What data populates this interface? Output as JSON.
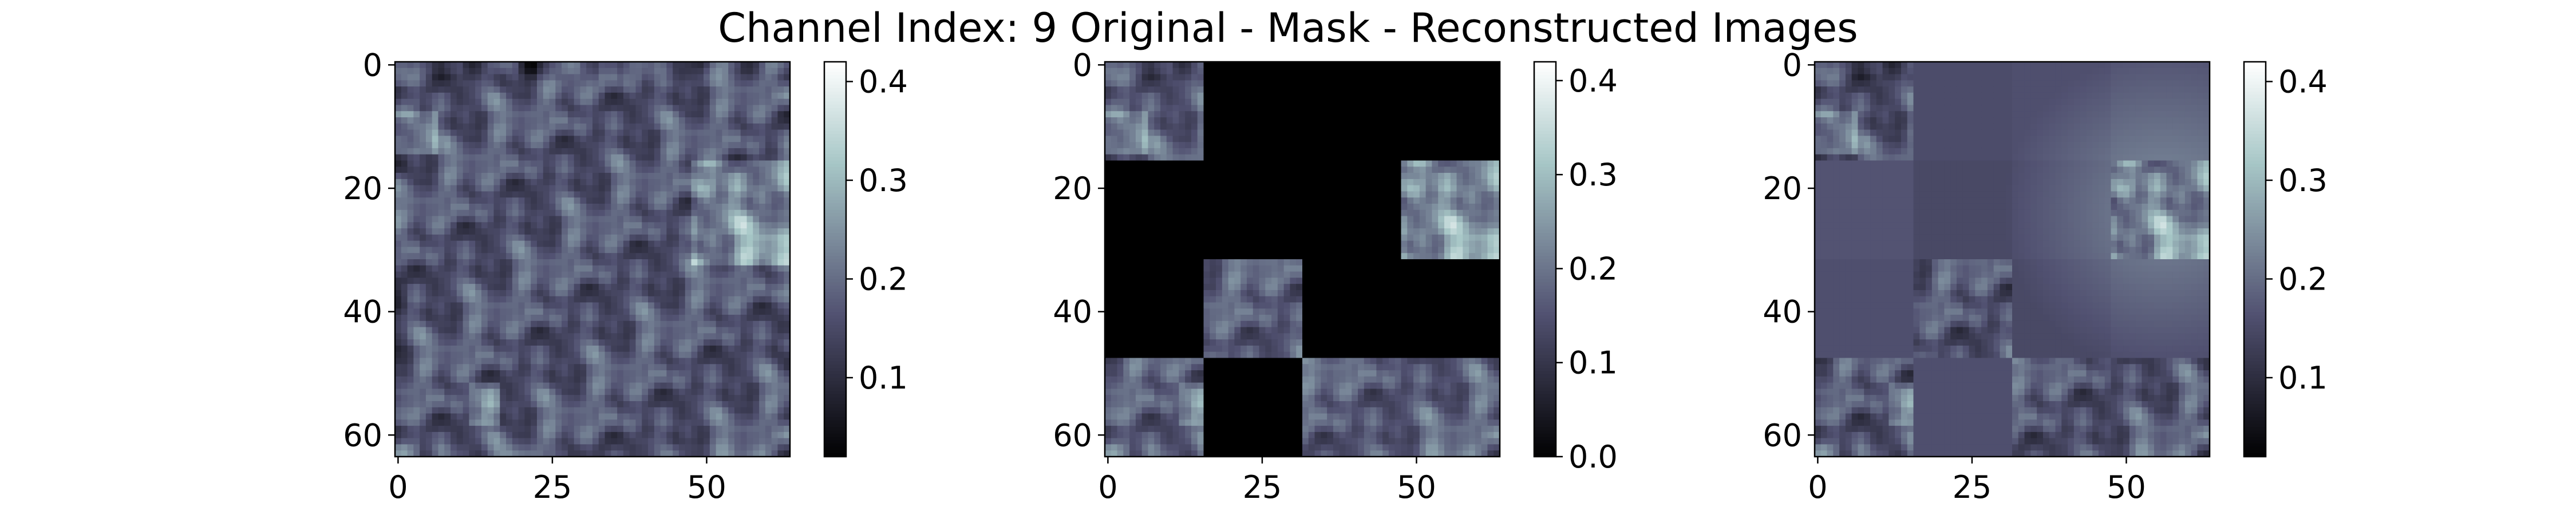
{
  "figure": {
    "title": "Channel Index: 9 Original - Mask - Reconstructed Images"
  },
  "chart_data": [
    {
      "type": "heatmap",
      "panel": "original",
      "colormap": "bone",
      "grid_size": [
        64,
        64
      ],
      "x_ticks": [
        0,
        25,
        50
      ],
      "y_ticks": [
        0,
        20,
        40,
        60
      ],
      "xlim": [
        -0.5,
        63.5
      ],
      "ylim": [
        63.5,
        -0.5
      ],
      "colorbar": {
        "range": [
          0.02,
          0.42
        ],
        "ticks": [
          "0.1",
          "0.2",
          "0.3",
          "0.4"
        ]
      },
      "value_stats": {
        "mean": 0.15,
        "min": 0.02,
        "max": 0.42
      },
      "bright_regions": [
        {
          "rows": [
            8,
            14
          ],
          "cols": [
            0,
            6
          ],
          "level": 0.3
        },
        {
          "rows": [
            16,
            32
          ],
          "cols": [
            48,
            63
          ],
          "level": 0.3
        },
        {
          "rows": [
            52,
            58
          ],
          "cols": [
            12,
            16
          ],
          "level": 0.3
        }
      ]
    },
    {
      "type": "heatmap",
      "panel": "mask",
      "colormap": "bone",
      "grid_size": [
        64,
        64
      ],
      "patch_size": 16,
      "x_ticks": [
        0,
        25,
        50
      ],
      "y_ticks": [
        0,
        20,
        40,
        60
      ],
      "xlim": [
        -0.5,
        63.5
      ],
      "ylim": [
        63.5,
        -0.5
      ],
      "colorbar": {
        "range": [
          0.0,
          0.42
        ],
        "ticks": [
          "0.0",
          "0.1",
          "0.2",
          "0.3",
          "0.4"
        ]
      },
      "visible_patches": [
        [
          0,
          0
        ],
        [
          1,
          3
        ],
        [
          2,
          1
        ],
        [
          3,
          0
        ],
        [
          3,
          2
        ],
        [
          3,
          3
        ]
      ],
      "masked_value": 0.0
    },
    {
      "type": "heatmap",
      "panel": "reconstructed",
      "colormap": "bone",
      "grid_size": [
        64,
        64
      ],
      "patch_size": 16,
      "x_ticks": [
        0,
        25,
        50
      ],
      "y_ticks": [
        0,
        20,
        40,
        60
      ],
      "xlim": [
        -0.5,
        63.5
      ],
      "ylim": [
        63.5,
        -0.5
      ],
      "colorbar": {
        "range": [
          0.02,
          0.42
        ],
        "ticks": [
          "0.1",
          "0.2",
          "0.3",
          "0.4"
        ]
      },
      "visible_patches": [
        [
          0,
          0
        ],
        [
          1,
          3
        ],
        [
          2,
          1
        ],
        [
          3,
          0
        ],
        [
          3,
          2
        ],
        [
          3,
          3
        ]
      ],
      "reconstructed_fill_level": 0.15
    }
  ]
}
